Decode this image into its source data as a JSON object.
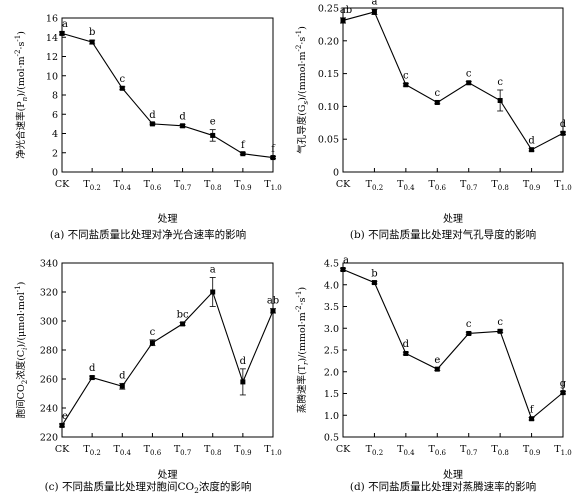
{
  "chart_data": [
    {
      "type": "line",
      "caption": "(a) 不同盐质量比处理对净光合速率的影响",
      "xlabel": "处理",
      "ylabel": "净光合速率(P",
      "ylabel_sub": "n",
      "ylabel_unit": ")/(mol·m",
      "ylabel_sup1": "-2",
      "ylabel_mid": "·s",
      "ylabel_sup2": "-1",
      "ylabel_end": ")",
      "categories": [
        "CK",
        "T0.2",
        "T0.4",
        "T0.6",
        "T0.7",
        "T0.8",
        "T0.9",
        "T1.0"
      ],
      "values": [
        14.4,
        13.5,
        8.7,
        5.0,
        4.8,
        3.8,
        1.9,
        1.5
      ],
      "errors": [
        0.15,
        0.2,
        0.15,
        0.1,
        0.15,
        0.6,
        0.1,
        0.1
      ],
      "labels": [
        "a",
        "b",
        "c",
        "d",
        "d",
        "e",
        "f",
        "f"
      ],
      "ylim": [
        0,
        16
      ],
      "yticks": [
        0,
        2,
        4,
        6,
        8,
        10,
        12,
        14,
        16
      ]
    },
    {
      "type": "line",
      "caption": "(b) 不同盐质量比处理对气孔导度的影响",
      "xlabel": "处理",
      "ylabel": "气孔导度(G",
      "ylabel_sub": "s",
      "ylabel_unit": ")/(mmol·m",
      "ylabel_sup1": "-2",
      "ylabel_mid": "·s",
      "ylabel_sup2": "-1",
      "ylabel_end": ")",
      "categories": [
        "CK",
        "T0.2",
        "T0.4",
        "T0.6",
        "T0.7",
        "T0.8",
        "T0.9",
        "T1.0"
      ],
      "values": [
        0.231,
        0.244,
        0.133,
        0.106,
        0.136,
        0.109,
        0.034,
        0.059
      ],
      "errors": [
        0.004,
        0.004,
        0.002,
        0.002,
        0.002,
        0.016,
        0.002,
        0.002
      ],
      "labels": [
        "ab",
        "a",
        "c",
        "c",
        "c",
        "c",
        "d",
        "d"
      ],
      "ylim": [
        0,
        0.25
      ],
      "yticks": [
        0,
        0.05,
        0.1,
        0.15,
        0.2,
        0.25
      ],
      "yticklabels": [
        "0",
        "0.05",
        "0.10",
        "0.15",
        "0.20",
        "0.25"
      ]
    },
    {
      "type": "line",
      "caption": "(c) 不同盐质量比处理对胞间CO",
      "caption_sub": "2",
      "caption_end": "浓度的影响",
      "xlabel": "处理",
      "ylabel": "胞间CO",
      "ylabel_sub0": "2",
      "ylabel_mid0": "浓度(C",
      "ylabel_sub": "i",
      "ylabel_unit": ")/(μmol·mol",
      "ylabel_sup1": "-1",
      "ylabel_end": ")",
      "categories": [
        "CK",
        "T0.2",
        "T0.4",
        "T0.6",
        "T0.7",
        "T0.8",
        "T0.9",
        "T1.0"
      ],
      "values": [
        228,
        261,
        255,
        285,
        298,
        320,
        258,
        307
      ],
      "errors": [
        1,
        1,
        2,
        2,
        1,
        10,
        9,
        1.5
      ],
      "labels": [
        "e",
        "d",
        "d",
        "c",
        "bc",
        "a",
        "d",
        "ab"
      ],
      "ylim": [
        220,
        340
      ],
      "yticks": [
        220,
        240,
        260,
        280,
        300,
        320,
        340
      ]
    },
    {
      "type": "line",
      "caption": "(d) 不同盐质量比处理对蒸腾速率的影响",
      "xlabel": "处理",
      "ylabel": "蒸腾速率(T",
      "ylabel_sub": "r",
      "ylabel_unit": ")/(mmol·m",
      "ylabel_sup1": "-2",
      "ylabel_mid": "·s",
      "ylabel_sup2": "-1",
      "ylabel_end": ")",
      "categories": [
        "CK",
        "T0.2",
        "T0.4",
        "T0.6",
        "T0.7",
        "T0.8",
        "T0.9",
        "T1.0"
      ],
      "values": [
        4.35,
        4.05,
        2.42,
        2.06,
        2.88,
        2.93,
        0.92,
        1.52
      ],
      "errors": [
        0.03,
        0.03,
        0.03,
        0.03,
        0.03,
        0.03,
        0.03,
        0.03
      ],
      "labels": [
        "a",
        "b",
        "d",
        "e",
        "c",
        "c",
        "f",
        "g"
      ],
      "ylim": [
        0.5,
        4.5
      ],
      "yticks": [
        0.5,
        1.0,
        1.5,
        2.0,
        2.5,
        3.0,
        3.5,
        4.0,
        4.5
      ],
      "yticklabels": [
        "0.5",
        "1.0",
        "1.5",
        "2.0",
        "2.5",
        "3.0",
        "3.5",
        "4.0",
        "4.5"
      ]
    }
  ]
}
